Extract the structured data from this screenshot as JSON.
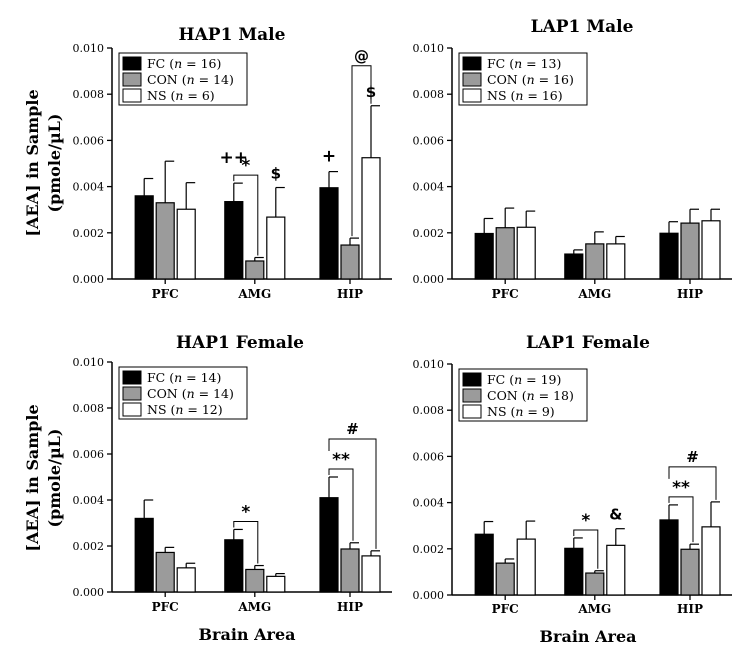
{
  "figure": {
    "y_label_line1": "[AEA] in Sample",
    "y_label_line2": "(pmole/µL)",
    "x_label": "Brain Area"
  },
  "colors": {
    "FC": "#000000",
    "CON": "#9b9b9b",
    "NS": "#ffffff"
  },
  "chart_data": [
    {
      "type": "bar",
      "title": "HAP1 Male",
      "categories": [
        "PFC",
        "AMG",
        "HIP"
      ],
      "ylim": [
        0,
        0.01
      ],
      "yticks": [
        "0.000",
        "0.002",
        "0.004",
        "0.006",
        "0.008",
        "0.010"
      ],
      "legend_position": "top-left",
      "series": [
        {
          "name": "FC",
          "n_label": "16",
          "values": [
            0.0036,
            0.00335,
            0.00395
          ],
          "errors": [
            0.00075,
            0.0008,
            0.0007
          ]
        },
        {
          "name": "CON",
          "n_label": "14",
          "values": [
            0.0033,
            0.00078,
            0.00147
          ],
          "errors": [
            0.0018,
            0.00015,
            0.0003
          ]
        },
        {
          "name": "NS",
          "n_label": "6",
          "values": [
            0.00302,
            0.00268,
            0.00525
          ],
          "errors": [
            0.00115,
            0.00128,
            0.00225
          ]
        }
      ],
      "annotations": [
        {
          "text": "++",
          "category": 1,
          "kind": "above"
        },
        {
          "text": "*",
          "category": 1,
          "kind": "bracket"
        },
        {
          "text": "$",
          "category": 1,
          "kind": "above-ns"
        },
        {
          "text": "+",
          "category": 2,
          "kind": "above"
        },
        {
          "text": "@",
          "category": 2,
          "kind": "bracket-con-ns"
        },
        {
          "text": "$",
          "category": 2,
          "kind": "above-ns"
        }
      ]
    },
    {
      "type": "bar",
      "title": "LAP1 Male",
      "categories": [
        "PFC",
        "AMG",
        "HIP"
      ],
      "ylim": [
        0,
        0.01
      ],
      "yticks": [
        "0.000",
        "0.002",
        "0.004",
        "0.006",
        "0.008",
        "0.010"
      ],
      "legend_position": "top-left",
      "series": [
        {
          "name": "FC",
          "n_label": "13",
          "values": [
            0.00197,
            0.00108,
            0.00198
          ],
          "errors": [
            0.00065,
            0.00018,
            0.0005
          ]
        },
        {
          "name": "CON",
          "n_label": "16",
          "values": [
            0.00222,
            0.00152,
            0.00242
          ],
          "errors": [
            0.00085,
            0.00052,
            0.0006
          ]
        },
        {
          "name": "NS",
          "n_label": "16",
          "values": [
            0.00224,
            0.00152,
            0.00252
          ],
          "errors": [
            0.0007,
            0.00032,
            0.0005
          ]
        }
      ],
      "annotations": []
    },
    {
      "type": "bar",
      "title": "HAP1 Female",
      "categories": [
        "PFC",
        "AMG",
        "HIP"
      ],
      "ylim": [
        0,
        0.01
      ],
      "yticks": [
        "0.000",
        "0.002",
        "0.004",
        "0.006",
        "0.008",
        "0.010"
      ],
      "legend_position": "top-left",
      "series": [
        {
          "name": "FC",
          "n_label": "14",
          "values": [
            0.0032,
            0.00227,
            0.0041
          ],
          "errors": [
            0.0008,
            0.00045,
            0.0009
          ]
        },
        {
          "name": "CON",
          "n_label": "14",
          "values": [
            0.00172,
            0.00098,
            0.00187
          ],
          "errors": [
            0.00022,
            0.00017,
            0.00027
          ]
        },
        {
          "name": "NS",
          "n_label": "12",
          "values": [
            0.00105,
            0.00068,
            0.00157
          ],
          "errors": [
            0.0002,
            0.00012,
            0.00022
          ]
        }
      ],
      "annotations": [
        {
          "text": "*",
          "category": 1,
          "kind": "bracket"
        },
        {
          "text": "**",
          "category": 2,
          "kind": "bracket"
        },
        {
          "text": "#",
          "category": 2,
          "kind": "bracket-fc-ns"
        }
      ]
    },
    {
      "type": "bar",
      "title": "LAP1 Female",
      "categories": [
        "PFC",
        "AMG",
        "HIP"
      ],
      "ylim": [
        0,
        0.01
      ],
      "yticks": [
        "0.000",
        "0.002",
        "0.004",
        "0.006",
        "0.008",
        "0.010"
      ],
      "legend_position": "top-left",
      "series": [
        {
          "name": "FC",
          "n_label": "19",
          "values": [
            0.00263,
            0.00202,
            0.00325
          ],
          "errors": [
            0.00055,
            0.00045,
            0.00065
          ]
        },
        {
          "name": "CON",
          "n_label": "18",
          "values": [
            0.00138,
            0.00095,
            0.00198
          ],
          "errors": [
            0.00018,
            0.0001,
            0.00022
          ]
        },
        {
          "name": "NS",
          "n_label": "9",
          "values": [
            0.00242,
            0.00215,
            0.00295
          ],
          "errors": [
            0.00078,
            0.00072,
            0.00108
          ]
        }
      ],
      "annotations": [
        {
          "text": "*",
          "category": 1,
          "kind": "bracket"
        },
        {
          "text": "&",
          "category": 1,
          "kind": "above-ns"
        },
        {
          "text": "**",
          "category": 2,
          "kind": "bracket"
        },
        {
          "text": "#",
          "category": 2,
          "kind": "bracket-fc-ns"
        }
      ]
    }
  ]
}
